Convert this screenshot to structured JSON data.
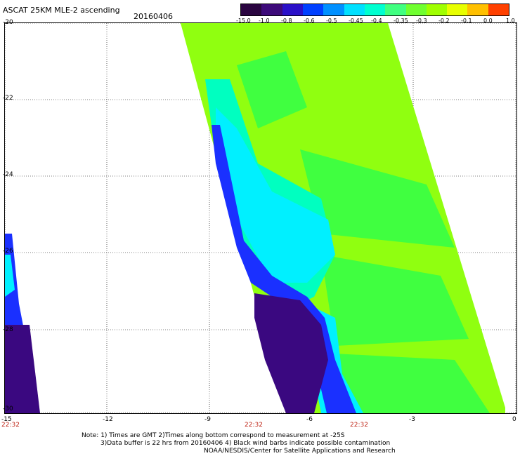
{
  "header": {
    "title": "ASCAT 25KM MLE-2 ascending",
    "date": "20160406"
  },
  "colorbar": {
    "labels": [
      "-15.0",
      "-1.0",
      "-0.8",
      "-0.6",
      "-0.5",
      "-0.45",
      "-0.4",
      "-0.35",
      "-0.3",
      "-0.2",
      "-0.1",
      "0.0",
      "1.0"
    ],
    "colors": [
      "#2a0540",
      "#3d0a7a",
      "#2a10c8",
      "#0040ff",
      "#0090ff",
      "#00e0ff",
      "#00ffd0",
      "#40ff80",
      "#70ff30",
      "#a0ff00",
      "#e8ff00",
      "#ffc000",
      "#ff4000"
    ]
  },
  "axes": {
    "y_labels": [
      "-20",
      "-22",
      "-24",
      "-26",
      "-28",
      "-30"
    ],
    "x_labels": [
      "-15",
      "-12",
      "-9",
      "-6",
      "-3",
      "0"
    ],
    "times": [
      "22:32",
      "22:32",
      "22:32"
    ]
  },
  "note": {
    "line1": "Note: 1) Times are GMT 2)Times along bottom correspond to measurement at -25S",
    "line2": "3)Data buffer is 22 hrs from 20160406 4) Black wind barbs indicate possible contamination",
    "line3": "NOAA/NESDIS/Center for Satellite Applications and Research"
  },
  "map": {
    "lon_range": [
      -15,
      0
    ],
    "lat_range": [
      -30,
      -20
    ],
    "colors": {
      "violet": "#3a0880",
      "blue": "#1a30ff",
      "cyan": "#00f0ff",
      "aqua": "#00ffc0",
      "green": "#40ff40",
      "lime": "#90ff10"
    }
  }
}
